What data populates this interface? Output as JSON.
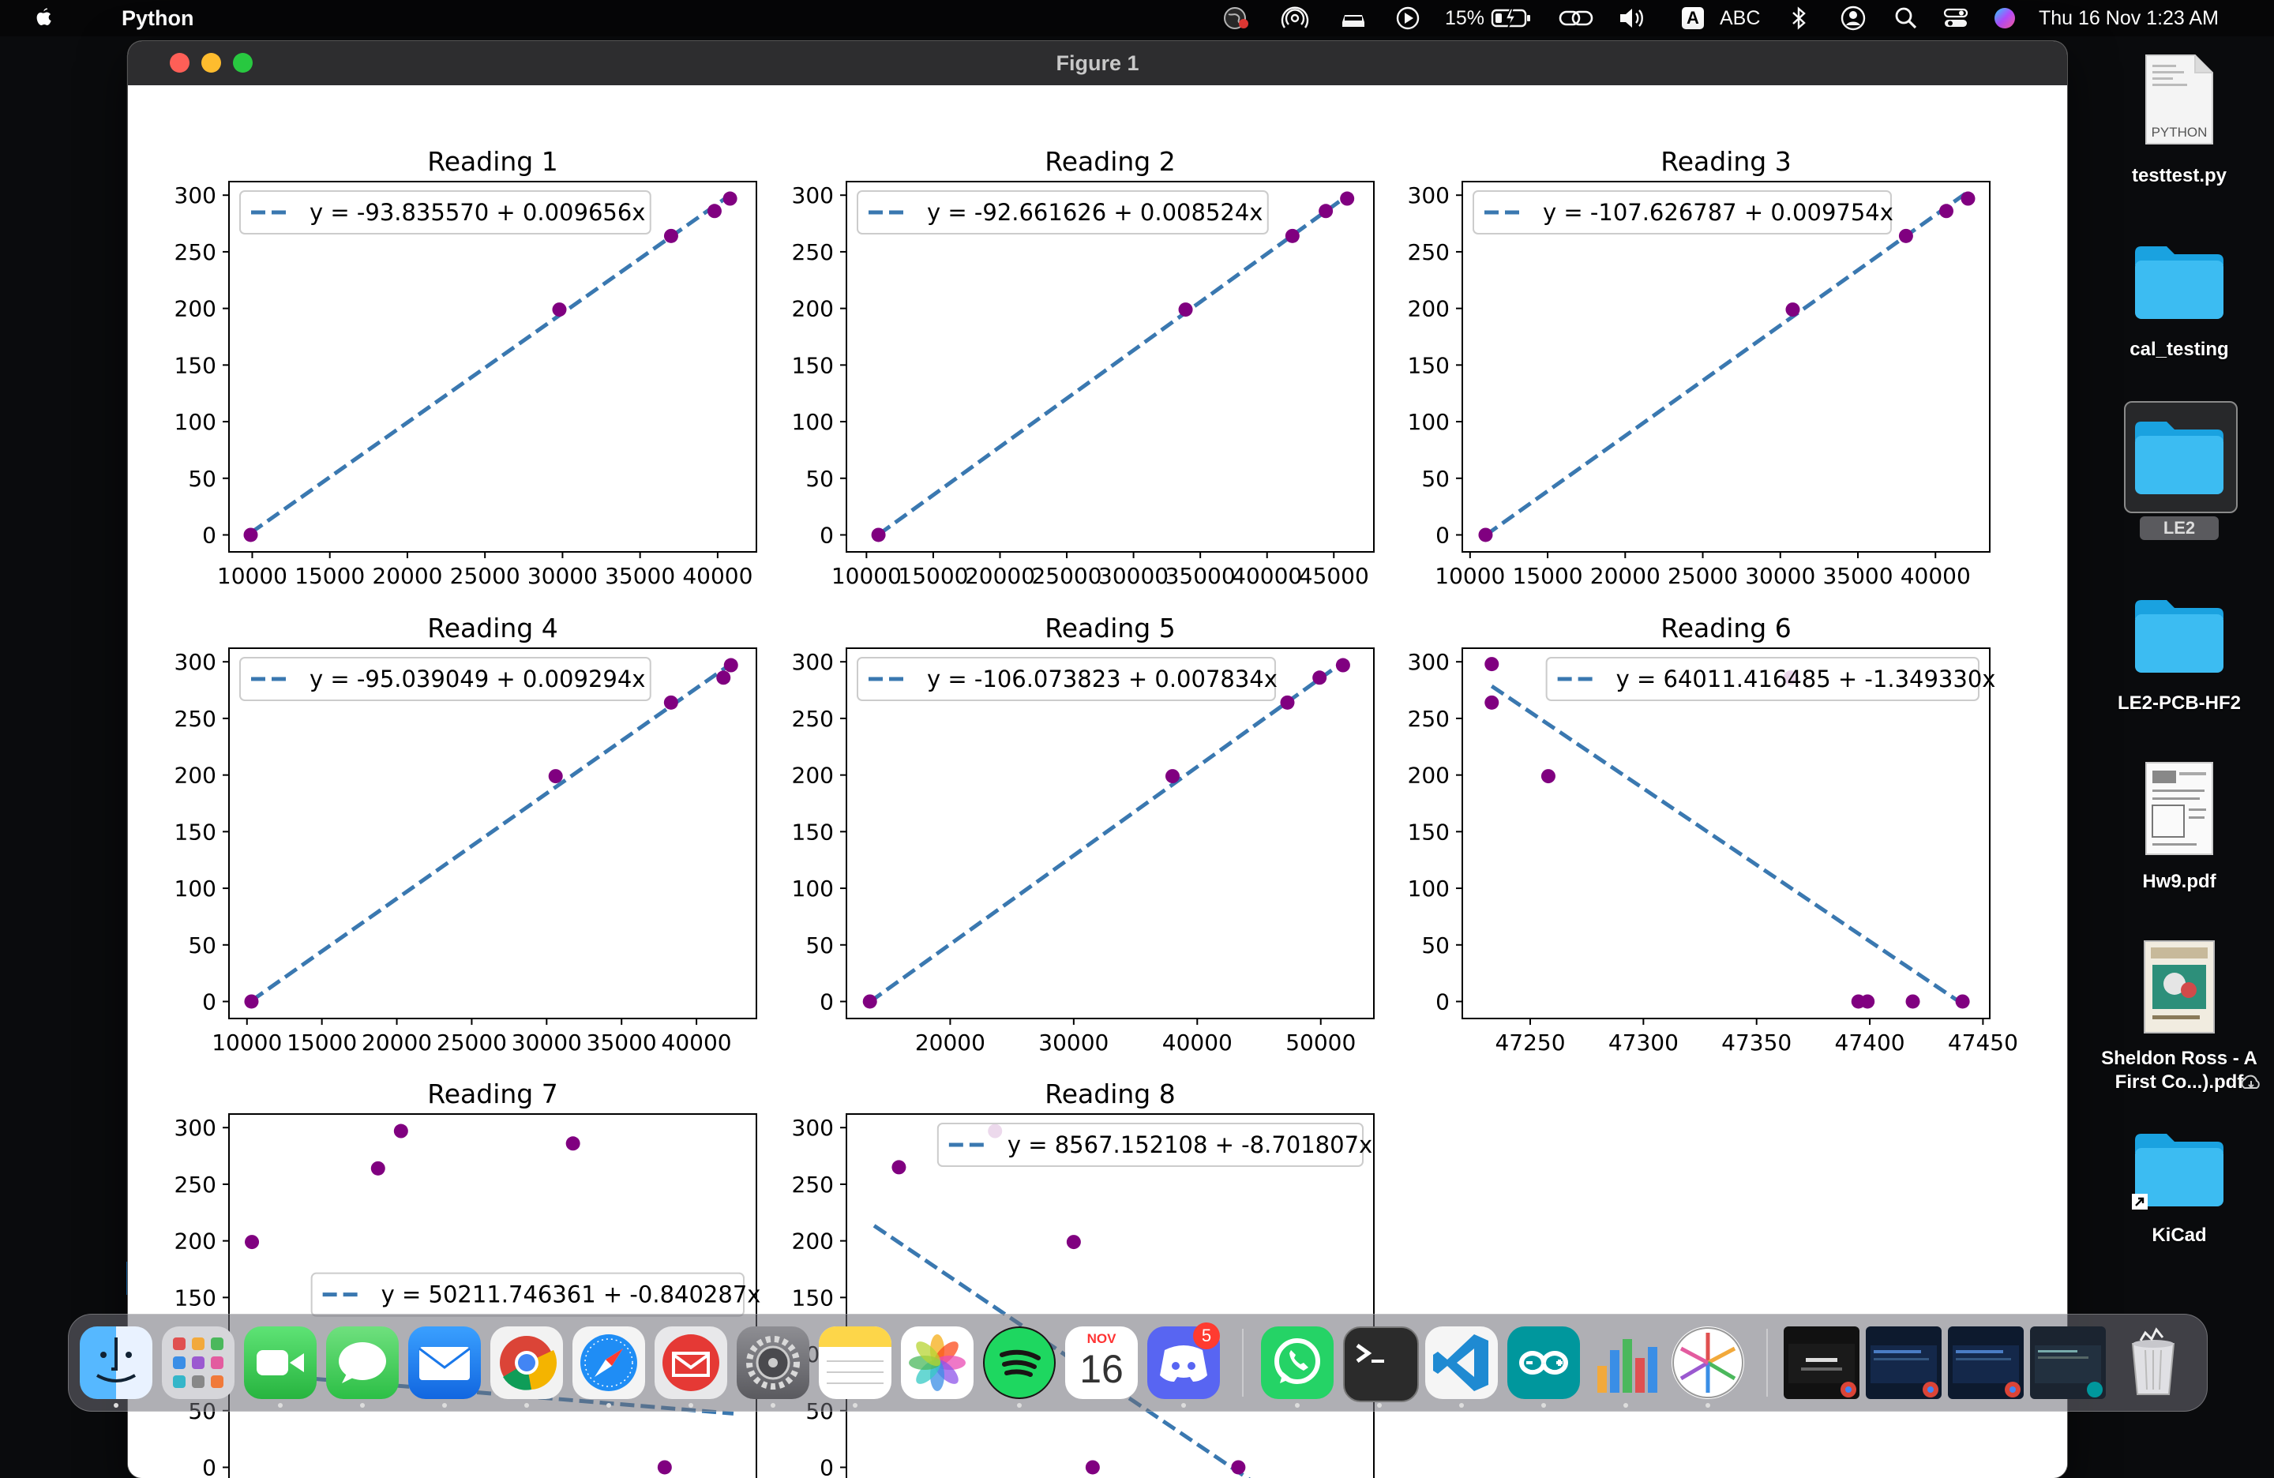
{
  "menubar": {
    "app_name": "Python",
    "battery_percent": "15%",
    "input_badge": "A",
    "input_source": "ABC",
    "datetime": "Thu 16 Nov  1:23 AM"
  },
  "window": {
    "title": "Figure 1"
  },
  "colors": {
    "fit_line": "#3a78b0",
    "points": "#800080",
    "dock_bg": "#6e6e76",
    "desktop_bg": "#0a0b0d"
  },
  "chart_data": [
    {
      "type": "scatter",
      "title": "Reading 1",
      "legend": "y = -93.835570 + 0.009656x",
      "legend_loc": "upper left",
      "xlim": [
        8500,
        42500
      ],
      "xticks": [
        10000,
        15000,
        20000,
        25000,
        30000,
        35000,
        40000
      ],
      "ylim": [
        -15,
        312
      ],
      "yticks": [
        0,
        50,
        100,
        150,
        200,
        250,
        300
      ],
      "points": [
        [
          9900,
          0
        ],
        [
          29800,
          199
        ],
        [
          37000,
          264
        ],
        [
          39800,
          286
        ],
        [
          40800,
          297
        ]
      ],
      "fit": {
        "intercept": -93.83557,
        "slope": 0.009656,
        "x_range": [
          9900,
          40800
        ]
      }
    },
    {
      "type": "scatter",
      "title": "Reading 2",
      "legend": "y = -92.661626 + 0.008524x",
      "legend_loc": "upper left",
      "xlim": [
        8500,
        48000
      ],
      "xticks": [
        10000,
        15000,
        20000,
        25000,
        30000,
        35000,
        40000,
        45000
      ],
      "ylim": [
        -15,
        312
      ],
      "yticks": [
        0,
        50,
        100,
        150,
        200,
        250,
        300
      ],
      "points": [
        [
          10900,
          0
        ],
        [
          33900,
          199
        ],
        [
          41900,
          264
        ],
        [
          44400,
          286
        ],
        [
          46000,
          297
        ]
      ],
      "fit": {
        "intercept": -92.661626,
        "slope": 0.008524,
        "x_range": [
          10900,
          46000
        ]
      }
    },
    {
      "type": "scatter",
      "title": "Reading 3",
      "legend": "y = -107.626787 + 0.009754x",
      "legend_loc": "upper left",
      "xlim": [
        9500,
        43500
      ],
      "xticks": [
        10000,
        15000,
        20000,
        25000,
        30000,
        35000,
        40000
      ],
      "ylim": [
        -15,
        312
      ],
      "yticks": [
        0,
        50,
        100,
        150,
        200,
        250,
        300
      ],
      "points": [
        [
          11000,
          0
        ],
        [
          30800,
          199
        ],
        [
          38100,
          264
        ],
        [
          40700,
          286
        ],
        [
          42100,
          297
        ]
      ],
      "fit": {
        "intercept": -107.626787,
        "slope": 0.009754,
        "x_range": [
          11000,
          42100
        ]
      }
    },
    {
      "type": "scatter",
      "title": "Reading 4",
      "legend": "y = -95.039049 + 0.009294x",
      "legend_loc": "upper left",
      "xlim": [
        8800,
        44000
      ],
      "xticks": [
        10000,
        15000,
        20000,
        25000,
        30000,
        35000,
        40000
      ],
      "ylim": [
        -15,
        312
      ],
      "yticks": [
        0,
        50,
        100,
        150,
        200,
        250,
        300
      ],
      "points": [
        [
          10300,
          0
        ],
        [
          30600,
          199
        ],
        [
          38300,
          264
        ],
        [
          41800,
          286
        ],
        [
          42300,
          297
        ]
      ],
      "fit": {
        "intercept": -95.039049,
        "slope": 0.009294,
        "x_range": [
          10300,
          42300
        ]
      }
    },
    {
      "type": "scatter",
      "title": "Reading 5",
      "legend": "y = -106.073823 + 0.007834x",
      "legend_loc": "upper left",
      "xlim": [
        11600,
        54300
      ],
      "xticks": [
        20000,
        30000,
        40000,
        50000
      ],
      "ylim": [
        -15,
        312
      ],
      "yticks": [
        0,
        50,
        100,
        150,
        200,
        250,
        300
      ],
      "points": [
        [
          13500,
          0
        ],
        [
          38000,
          199
        ],
        [
          47300,
          264
        ],
        [
          49900,
          286
        ],
        [
          51800,
          297
        ]
      ],
      "fit": {
        "intercept": -106.073823,
        "slope": 0.007834,
        "x_range": [
          13500,
          51800
        ]
      }
    },
    {
      "type": "scatter",
      "title": "Reading 6",
      "legend": "y = 64011.416485 + -1.349330x",
      "legend_loc": "upper right",
      "xlim": [
        47220,
        47453
      ],
      "xticks": [
        47250,
        47300,
        47350,
        47400,
        47450
      ],
      "ylim": [
        -15,
        312
      ],
      "yticks": [
        0,
        50,
        100,
        150,
        200,
        250,
        300
      ],
      "points": [
        [
          47233,
          298
        ],
        [
          47233,
          264
        ],
        [
          47258,
          199
        ],
        [
          47365,
          286
        ],
        [
          47395,
          0
        ],
        [
          47399,
          0
        ],
        [
          47419,
          0
        ],
        [
          47441,
          0
        ]
      ],
      "fit": {
        "intercept": 64011.416485,
        "slope": -1.34933,
        "x_range": [
          47233,
          47441
        ]
      }
    },
    {
      "type": "scatter",
      "title": "Reading 7",
      "legend": "y = 50211.746361 + -0.840287x",
      "legend_loc": "center right",
      "xlim": [
        59655,
        59701
      ],
      "xticks": [],
      "ylim": [
        -15,
        312
      ],
      "yticks": [
        0,
        50,
        100,
        150,
        200,
        250,
        300
      ],
      "points": [
        [
          59657,
          199
        ],
        [
          59668,
          264
        ],
        [
          59670,
          297
        ],
        [
          59685,
          286
        ],
        [
          59693,
          0
        ]
      ],
      "fit": {
        "intercept": 50211.746361,
        "slope": -0.840287,
        "x_range": [
          59657,
          59699
        ]
      }
    },
    {
      "type": "scatter",
      "title": "Reading 8",
      "legend": "y = 8567.152108 + -8.701807x",
      "legend_loc": "upper right",
      "xlim": [
        958.1,
        994.3
      ],
      "xticks": [],
      "ylim": [
        -15,
        312
      ],
      "yticks": [
        0,
        50,
        100,
        150,
        200,
        250,
        300
      ],
      "points": [
        [
          961.7,
          265
        ],
        [
          968.3,
          297
        ],
        [
          973.7,
          199
        ],
        [
          975,
          0
        ],
        [
          985,
          0
        ]
      ],
      "fit": {
        "intercept": 8567.152108,
        "slope": -8.701807,
        "x_range": [
          960,
          993
        ]
      }
    }
  ],
  "desktop": [
    {
      "label": "testtest.py",
      "file_tag": "PYTHON",
      "icon": "python-file-icon"
    },
    {
      "label": "cal_testing",
      "icon": "folder-icon"
    },
    {
      "label": "LE2",
      "icon": "folder-icon"
    },
    {
      "label": "LE2-PCB-HF2",
      "icon": "folder-icon"
    },
    {
      "label": "Hw9.pdf",
      "icon": "pdf-document-icon"
    },
    {
      "label": "Sheldon Ross - A First Co...).pdf",
      "icon": "pdf-book-icon"
    },
    {
      "label": "KiCad",
      "icon": "folder-alias-icon"
    }
  ],
  "dock": {
    "calendar_month": "NOV",
    "calendar_day": "16",
    "discord_badge": "5",
    "apps": [
      "Finder",
      "Launchpad",
      "FaceTime",
      "Messages",
      "Mail",
      "Chrome",
      "Safari",
      "Spark",
      "System Settings",
      "Notes",
      "Photos",
      "Spotify",
      "Calendar",
      "Discord",
      "WhatsApp",
      "Terminal",
      "Visual Studio Code",
      "Arduino",
      "Instruments",
      "Pinwheel",
      "Chrome Window 1",
      "Chrome Window 2",
      "Chrome Window 3",
      "Arduino Window",
      "Trash"
    ]
  }
}
